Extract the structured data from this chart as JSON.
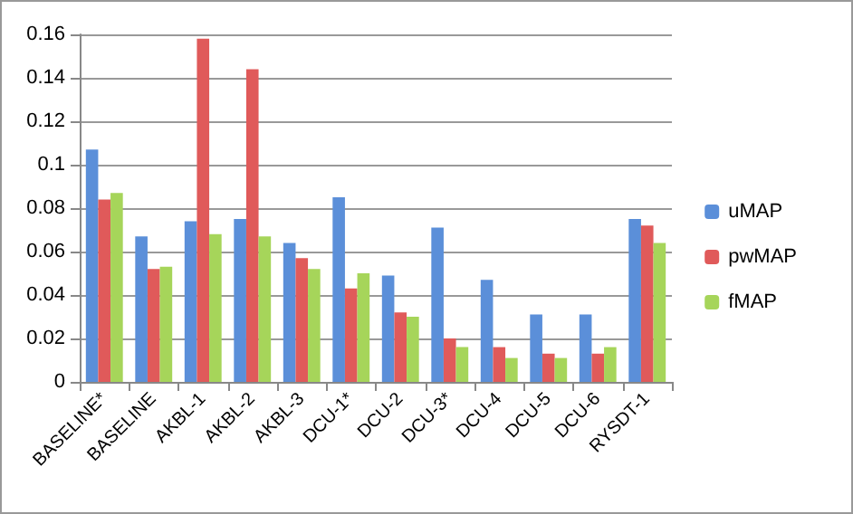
{
  "chart_data": {
    "type": "bar",
    "categories": [
      "BASELINE*",
      "BASELINE",
      "AKBL-1",
      "AKBL-2",
      "AKBL-3",
      "DCU-1*",
      "DCU-2",
      "DCU-3*",
      "DCU-4",
      "DCU-5",
      "DCU-6",
      "RYSDT-1"
    ],
    "series": [
      {
        "name": "uMAP",
        "color": "#5b8fd9",
        "values": [
          0.107,
          0.067,
          0.074,
          0.075,
          0.064,
          0.085,
          0.049,
          0.071,
          0.047,
          0.031,
          0.031,
          0.075
        ]
      },
      {
        "name": "pwMAP",
        "color": "#e05a5a",
        "values": [
          0.084,
          0.052,
          0.158,
          0.144,
          0.057,
          0.043,
          0.032,
          0.02,
          0.016,
          0.013,
          0.013,
          0.072
        ]
      },
      {
        "name": "fMAP",
        "color": "#a6d55a",
        "values": [
          0.087,
          0.053,
          0.068,
          0.067,
          0.052,
          0.05,
          0.03,
          0.016,
          0.011,
          0.011,
          0.016,
          0.064
        ]
      }
    ],
    "ylim": [
      0,
      0.16
    ],
    "yticks": [
      0,
      0.02,
      0.04,
      0.06,
      0.08,
      0.1,
      0.12,
      0.14,
      0.16
    ],
    "grid": "y",
    "legend": "right"
  }
}
